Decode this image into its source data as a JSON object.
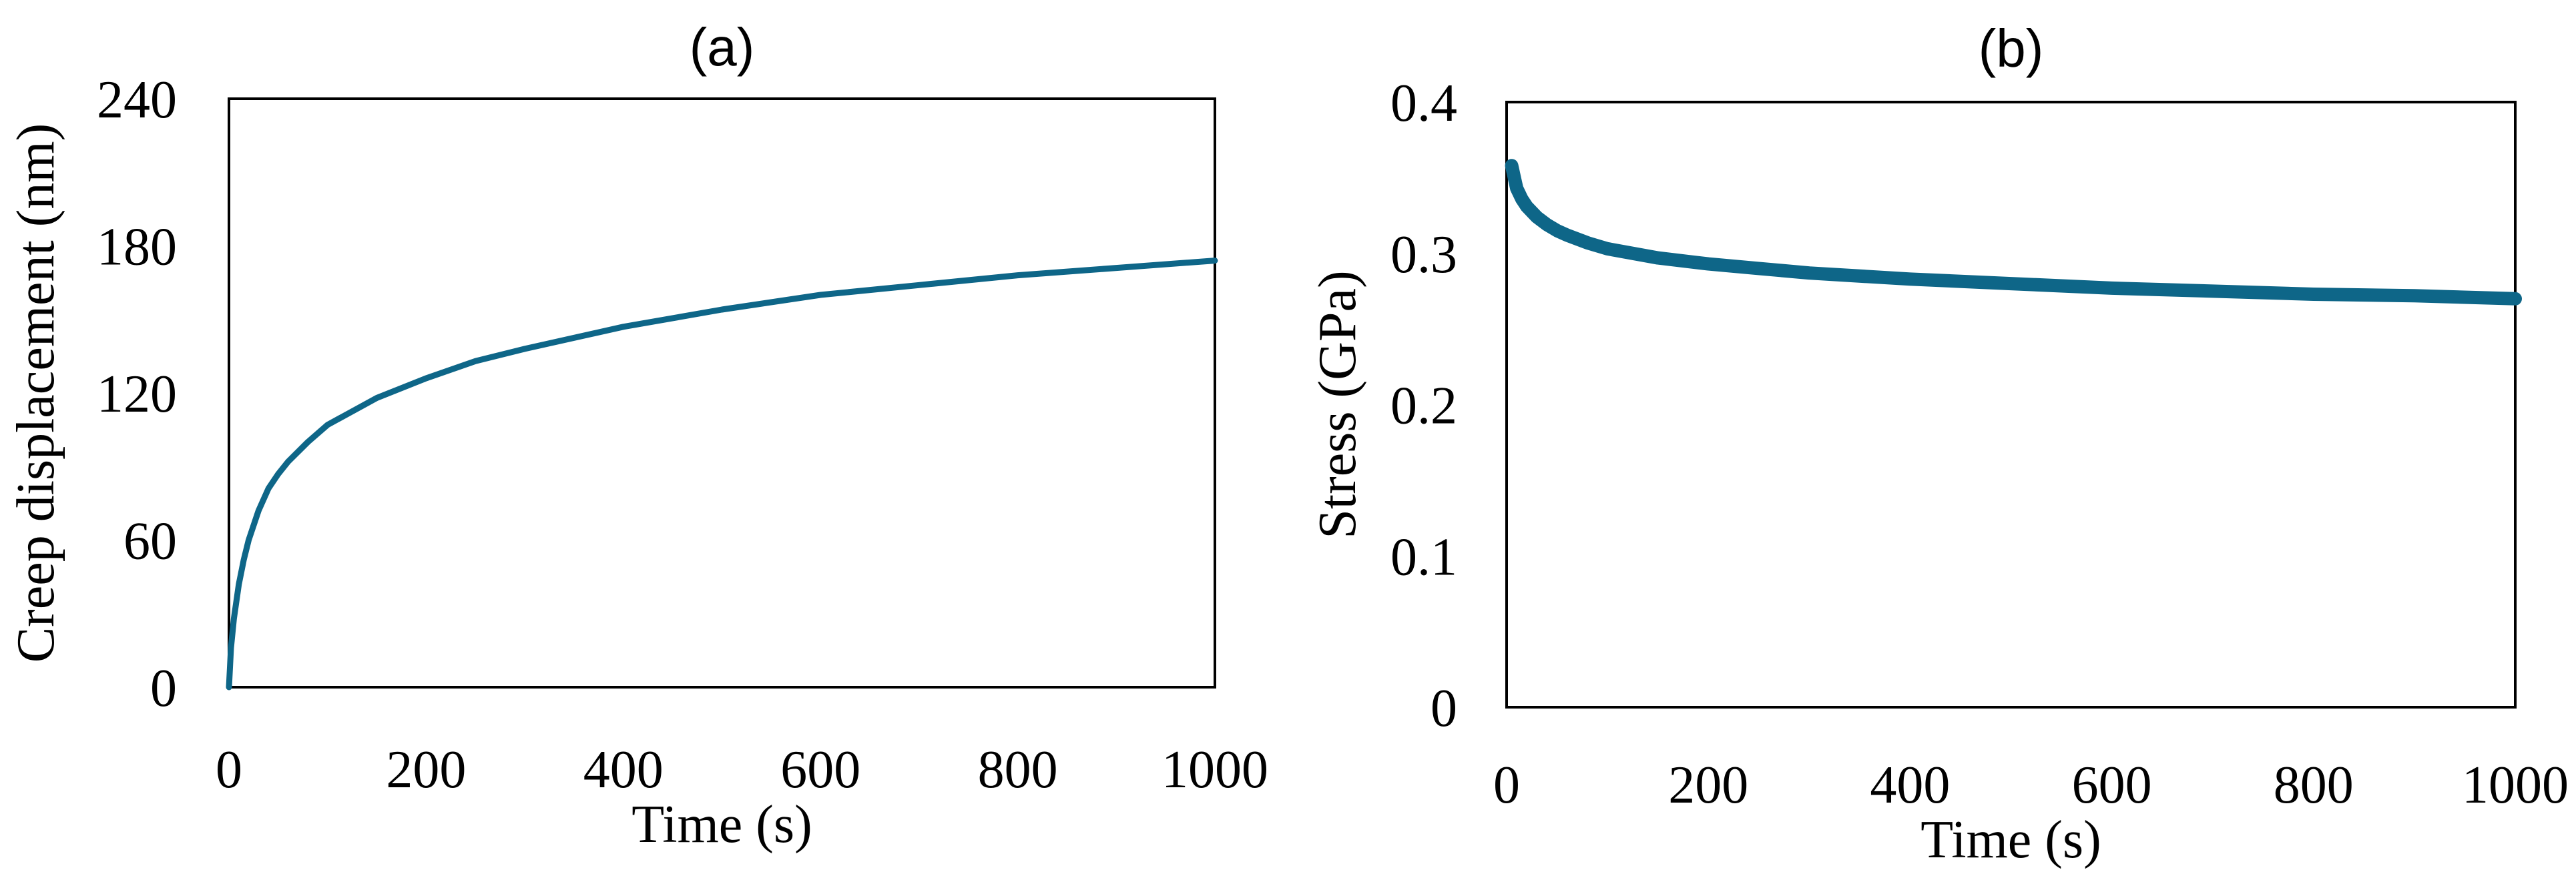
{
  "colors": {
    "series": "#0e6688",
    "axis": "#000000",
    "background": "#ffffff"
  },
  "chart_data": [
    {
      "type": "line",
      "title": "(a)",
      "xlabel": "Time (s)",
      "ylabel": "Creep displacement (nm)",
      "xlim": [
        0,
        1000
      ],
      "ylim": [
        0,
        240
      ],
      "xticks": [
        0,
        200,
        400,
        600,
        800,
        1000
      ],
      "yticks": [
        0,
        60,
        120,
        180,
        240
      ],
      "grid": false,
      "series": [
        {
          "x": [
            0,
            2,
            5,
            10,
            15,
            20,
            30,
            40,
            50,
            60,
            80,
            100,
            150,
            200,
            250,
            300,
            400,
            500,
            600,
            700,
            800,
            900,
            1000
          ],
          "y": [
            0,
            16,
            28,
            42,
            52,
            60,
            72,
            81,
            87,
            92,
            100,
            107,
            118,
            126,
            133,
            138,
            147,
            154,
            160,
            164,
            168,
            171,
            174
          ]
        }
      ]
    },
    {
      "type": "line",
      "title": "(b)",
      "xlabel": "Time (s)",
      "ylabel": "Stress (GPa)",
      "xlim": [
        0,
        1000
      ],
      "ylim": [
        0,
        0.4
      ],
      "xticks": [
        0,
        200,
        400,
        600,
        800,
        1000
      ],
      "yticks": [
        0,
        0.1,
        0.2,
        0.3,
        0.4
      ],
      "grid": false,
      "series": [
        {
          "x": [
            5,
            8,
            10,
            15,
            20,
            30,
            40,
            50,
            60,
            80,
            100,
            150,
            200,
            250,
            300,
            400,
            500,
            600,
            700,
            800,
            900,
            1000
          ],
          "y": [
            0.358,
            0.349,
            0.343,
            0.336,
            0.331,
            0.324,
            0.319,
            0.315,
            0.312,
            0.307,
            0.303,
            0.297,
            0.293,
            0.29,
            0.287,
            0.283,
            0.28,
            0.277,
            0.275,
            0.273,
            0.272,
            0.27
          ]
        }
      ]
    }
  ]
}
